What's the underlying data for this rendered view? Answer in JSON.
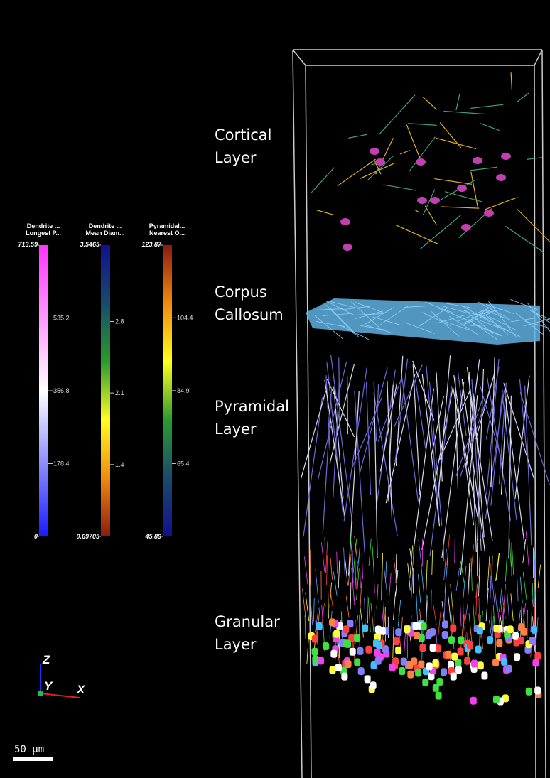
{
  "layers": [
    {
      "lines": [
        "Cortical",
        "Layer"
      ]
    },
    {
      "lines": [
        "Corpus",
        "Callosum"
      ]
    },
    {
      "lines": [
        "Pyramidal",
        "Layer"
      ]
    },
    {
      "lines": [
        "Granular",
        "Layer"
      ]
    }
  ],
  "colorbars": [
    {
      "title": [
        "Dendrite ...",
        "Longest P..."
      ],
      "range": [
        0,
        713.59
      ],
      "ticks": [
        178.4,
        356.8,
        535.2
      ],
      "colors": [
        "#1a1aff",
        "#ffffff",
        "#ff33ff"
      ]
    },
    {
      "title": [
        "Dendrite ...",
        "Mean Diam..."
      ],
      "range": [
        0.69705,
        3.5465
      ],
      "ticks": [
        1.4,
        2.1,
        2.8
      ],
      "colors": [
        "#8b1a10",
        "#f08a10",
        "#ffff20",
        "#2a9a30",
        "#1a4a6a",
        "#101090"
      ]
    },
    {
      "title": [
        "Pyramidal...",
        "Nearest O..."
      ],
      "range": [
        45.89,
        123.87
      ],
      "ticks": [
        65.4,
        84.9,
        104.4
      ],
      "colors": [
        "#101090",
        "#1a4a6a",
        "#2a9a30",
        "#ffff20",
        "#f08a10",
        "#8b1a10"
      ]
    }
  ],
  "axes": {
    "z": "Z",
    "y": "Y",
    "x": "X"
  },
  "scale_bar": "50 µm"
}
